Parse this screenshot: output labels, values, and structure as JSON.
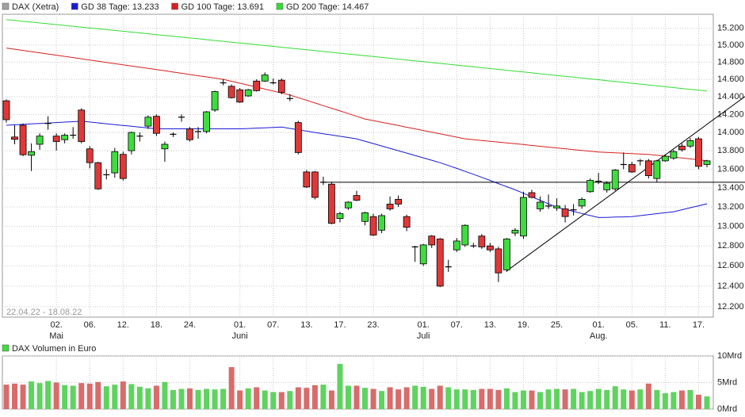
{
  "chart_data": {
    "type": "candlestick",
    "name": "DAX (Xetra)",
    "log": true,
    "grid": true,
    "date_range": "22.04.22 - 18.08.22",
    "up_color": "#3fdc3f",
    "down_color": "#e03838",
    "flat_color": "#000000",
    "legend_marker_color": "#a0a0a0",
    "ylim": [
      12100,
      15370
    ],
    "yticks": [
      {
        "value": 12200,
        "label": "12.200"
      },
      {
        "value": 12400,
        "label": "12.400"
      },
      {
        "value": 12600,
        "label": "12.600"
      },
      {
        "value": 12800,
        "label": "12.800"
      },
      {
        "value": 13000,
        "label": "13.000"
      },
      {
        "value": 13200,
        "label": "13.200"
      },
      {
        "value": 13400,
        "label": "13.400"
      },
      {
        "value": 13600,
        "label": "13.600"
      },
      {
        "value": 13800,
        "label": "13.800"
      },
      {
        "value": 14000,
        "label": "14.000"
      },
      {
        "value": 14200,
        "label": "14.200"
      },
      {
        "value": 14400,
        "label": "14.400"
      },
      {
        "value": 14600,
        "label": "14.600"
      },
      {
        "value": 14800,
        "label": "14.800"
      },
      {
        "value": 15000,
        "label": "15.000"
      },
      {
        "value": 15200,
        "label": "15.200"
      }
    ],
    "categories": [
      null,
      null,
      null,
      null,
      null,
      null,
      "02.",
      null,
      null,
      null,
      "06.",
      null,
      null,
      null,
      "12.",
      null,
      null,
      null,
      "18.",
      null,
      null,
      null,
      "24.",
      null,
      null,
      null,
      null,
      null,
      "01.",
      null,
      null,
      null,
      "07.",
      null,
      null,
      null,
      "13.",
      null,
      null,
      null,
      "17.",
      null,
      null,
      null,
      "23.",
      null,
      null,
      null,
      null,
      null,
      "01.",
      null,
      null,
      null,
      "07.",
      null,
      null,
      null,
      "13.",
      null,
      null,
      null,
      "19.",
      null,
      null,
      null,
      "25.",
      null,
      null,
      null,
      null,
      "01.",
      null,
      null,
      null,
      "05.",
      null,
      null,
      null,
      "11.",
      null,
      null,
      null,
      "17.",
      null
    ],
    "months": [
      null,
      null,
      null,
      null,
      null,
      null,
      "Mai",
      null,
      null,
      null,
      null,
      null,
      null,
      null,
      null,
      null,
      null,
      null,
      null,
      null,
      null,
      null,
      null,
      null,
      null,
      null,
      null,
      null,
      "Juni",
      null,
      null,
      null,
      null,
      null,
      null,
      null,
      null,
      null,
      null,
      null,
      null,
      null,
      null,
      null,
      null,
      null,
      null,
      null,
      null,
      null,
      "Juli",
      null,
      null,
      null,
      null,
      null,
      null,
      null,
      null,
      null,
      null,
      null,
      null,
      null,
      null,
      null,
      null,
      null,
      null,
      null,
      null,
      "Aug.",
      null,
      null,
      null,
      null,
      null,
      null,
      null,
      null,
      null,
      null,
      null,
      null,
      null
    ],
    "ohlc": [
      [
        14355,
        14370,
        14110,
        14142
      ],
      [
        13950,
        14080,
        13870,
        13924
      ],
      [
        14080,
        14100,
        13740,
        13756
      ],
      [
        13750,
        13880,
        13580,
        13790
      ],
      [
        13870,
        13990,
        13810,
        13960
      ],
      [
        14100,
        14180,
        14030,
        14100
      ],
      [
        13960,
        13990,
        13800,
        13900
      ],
      [
        13920,
        13990,
        13880,
        13970
      ],
      [
        13970,
        14060,
        13930,
        13970
      ],
      [
        14250,
        14270,
        13880,
        13900
      ],
      [
        13820,
        13850,
        13610,
        13670
      ],
      [
        13670,
        13680,
        13380,
        13390
      ],
      [
        13540,
        13600,
        13490,
        13540
      ],
      [
        13560,
        13830,
        13510,
        13790
      ],
      [
        13760,
        13790,
        13480,
        13500
      ],
      [
        13800,
        14010,
        13760,
        14000
      ],
      [
        13960,
        14000,
        13900,
        13960
      ],
      [
        14070,
        14190,
        14040,
        14170
      ],
      [
        14180,
        14200,
        13960,
        13990
      ],
      [
        13820,
        13900,
        13680,
        13870
      ],
      [
        13980,
        14000,
        13950,
        13980
      ],
      [
        14170,
        14200,
        14120,
        14170
      ],
      [
        14040,
        14060,
        13900,
        13920
      ],
      [
        14010,
        14060,
        13930,
        14010
      ],
      [
        14010,
        14240,
        13990,
        14230
      ],
      [
        14250,
        14470,
        14230,
        14460
      ],
      [
        14560,
        14600,
        14530,
        14560
      ],
      [
        14520,
        14540,
        14380,
        14390
      ],
      [
        14480,
        14500,
        14330,
        14340
      ],
      [
        14410,
        14490,
        14400,
        14480
      ],
      [
        14580,
        14600,
        14460,
        14470
      ],
      [
        14580,
        14680,
        14570,
        14650
      ],
      [
        14560,
        14610,
        14540,
        14560
      ],
      [
        14590,
        14610,
        14430,
        14450
      ],
      [
        14380,
        14430,
        14350,
        14380
      ],
      [
        14110,
        14130,
        13760,
        13780
      ],
      [
        13570,
        13590,
        13400,
        13410
      ],
      [
        13570,
        13580,
        13280,
        13300
      ],
      [
        13460,
        13520,
        13430,
        13460
      ],
      [
        13440,
        13460,
        13020,
        13030
      ],
      [
        13080,
        13150,
        13040,
        13130
      ],
      [
        13190,
        13260,
        13170,
        13250
      ],
      [
        13320,
        13370,
        13260,
        13270
      ],
      [
        13050,
        13150,
        13010,
        13140
      ],
      [
        13100,
        13130,
        12900,
        12910
      ],
      [
        12960,
        13130,
        12930,
        13110
      ],
      [
        13230,
        13310,
        13160,
        13180
      ],
      [
        13280,
        13320,
        13200,
        13230
      ],
      [
        13100,
        13120,
        12950,
        12990
      ],
      [
        12790,
        12800,
        12640,
        12790
      ],
      [
        12620,
        12820,
        12600,
        12810
      ],
      [
        12900,
        12910,
        12780,
        12810
      ],
      [
        12870,
        12880,
        12390,
        12400
      ],
      [
        12590,
        12660,
        12540,
        12590
      ],
      [
        12760,
        12880,
        12740,
        12850
      ],
      [
        12810,
        13020,
        12790,
        13010
      ],
      [
        12800,
        12830,
        12780,
        12800
      ],
      [
        12900,
        12920,
        12770,
        12790
      ],
      [
        12800,
        12830,
        12740,
        12760
      ],
      [
        12770,
        12790,
        12440,
        12530
      ],
      [
        12560,
        12880,
        12540,
        12870
      ],
      [
        12930,
        12980,
        12900,
        12960
      ],
      [
        12900,
        13360,
        12870,
        13300
      ],
      [
        13350,
        13380,
        13290,
        13300
      ],
      [
        13180,
        13310,
        13150,
        13250
      ],
      [
        13210,
        13330,
        13180,
        13210
      ],
      [
        13190,
        13290,
        13160,
        13210
      ],
      [
        13180,
        13220,
        13040,
        13100
      ],
      [
        13170,
        13230,
        13110,
        13170
      ],
      [
        13210,
        13300,
        13180,
        13280
      ],
      [
        13360,
        13500,
        13350,
        13480
      ],
      [
        13470,
        13560,
        13440,
        13470
      ],
      [
        13380,
        13470,
        13350,
        13450
      ],
      [
        13390,
        13600,
        13370,
        13590
      ],
      [
        13650,
        13780,
        13600,
        13650
      ],
      [
        13650,
        13680,
        13560,
        13570
      ],
      [
        13690,
        13710,
        13640,
        13690
      ],
      [
        13690,
        13710,
        13500,
        13530
      ],
      [
        13500,
        13700,
        13460,
        13690
      ],
      [
        13690,
        13760,
        13680,
        13740
      ],
      [
        13720,
        13810,
        13700,
        13790
      ],
      [
        13850,
        13880,
        13790,
        13810
      ],
      [
        13850,
        13940,
        13830,
        13910
      ],
      [
        13930,
        13950,
        13600,
        13630
      ],
      [
        13650,
        13700,
        13620,
        13690
      ]
    ],
    "series": [
      {
        "name": "GD 38 Tage: 13.233",
        "color": "#1a1ad6",
        "values": [
          14080,
          14085,
          14090,
          14095,
          14100,
          14105,
          14110,
          14115,
          14120,
          14125,
          14116,
          14106,
          14097,
          14087,
          14078,
          14069,
          14059,
          14050,
          14040,
          14040,
          14040,
          14040,
          14040,
          14040,
          14040,
          14040,
          14040,
          14040,
          14040,
          14044,
          14048,
          14052,
          14056,
          14060,
          14045,
          14030,
          14015,
          14000,
          13986,
          13972,
          13958,
          13944,
          13930,
          13904,
          13878,
          13852,
          13826,
          13800,
          13774,
          13748,
          13722,
          13696,
          13670,
          13639,
          13608,
          13576,
          13545,
          13512,
          13479,
          13446,
          13413,
          13380,
          13343,
          13306,
          13270,
          13233,
          13196,
          13175,
          13154,
          13132,
          13111,
          13090,
          13092,
          13095,
          13097,
          13100,
          13110,
          13120,
          13130,
          13140,
          13150,
          13171,
          13192,
          13212,
          13233
        ]
      },
      {
        "name": "GD 100 Tage: 13.691",
        "color": "#d82020",
        "values": [
          14965,
          14951,
          14937,
          14923,
          14909,
          14895,
          14881,
          14867,
          14853,
          14839,
          14825,
          14811,
          14797,
          14783,
          14769,
          14755,
          14741,
          14727,
          14713,
          14699,
          14684,
          14670,
          14656,
          14642,
          14628,
          14614,
          14600,
          14578,
          14555,
          14533,
          14510,
          14488,
          14465,
          14443,
          14420,
          14390,
          14360,
          14330,
          14300,
          14270,
          14240,
          14210,
          14180,
          14150,
          14132,
          14113,
          14095,
          14077,
          14058,
          14040,
          14022,
          14003,
          13985,
          13967,
          13948,
          13930,
          13921,
          13912,
          13903,
          13894,
          13885,
          13876,
          13867,
          13857,
          13848,
          13839,
          13830,
          13821,
          13812,
          13803,
          13794,
          13785,
          13781,
          13777,
          13773,
          13768,
          13764,
          13760,
          13750,
          13740,
          13730,
          13720,
          13711,
          13701,
          13691
        ]
      },
      {
        "name": "GD 200 Tage: 14.467",
        "color": "#33dd33",
        "values": [
          15305,
          15295,
          15285,
          15275,
          15265,
          15255,
          15245,
          15235,
          15225,
          15215,
          15205,
          15195,
          15185,
          15175,
          15165,
          15155,
          15145,
          15135,
          15125,
          15115,
          15105,
          15095,
          15085,
          15075,
          15065,
          15055,
          15045,
          15035,
          15025,
          15015,
          15005,
          14995,
          14985,
          14975,
          14965,
          14955,
          14945,
          14935,
          14925,
          14915,
          14905,
          14895,
          14885,
          14875,
          14865,
          14855,
          14845,
          14835,
          14825,
          14815,
          14805,
          14795,
          14785,
          14775,
          14765,
          14755,
          14745,
          14735,
          14725,
          14715,
          14705,
          14695,
          14685,
          14675,
          14665,
          14655,
          14645,
          14635,
          14625,
          14615,
          14605,
          14595,
          14585,
          14575,
          14565,
          14555,
          14545,
          14535,
          14525,
          14515,
          14505,
          14495,
          14485,
          14475,
          14467
        ]
      }
    ],
    "hline": 13460,
    "trendline": {
      "x": [
        60,
        84
      ],
      "values": [
        12550,
        14090
      ]
    },
    "volume": {
      "title": "DAX Volumen in Euro",
      "marker_color": "#3fdc3f",
      "up_color": "#5fd35f",
      "down_color": "#d96b6b",
      "ylim": [
        0,
        10
      ],
      "yticks": [
        {
          "value": 0,
          "label": "0Mrd"
        },
        {
          "value": 5,
          "label": "5Mrd"
        },
        {
          "value": 10,
          "label": "10Mrd"
        }
      ],
      "values": [
        4.6,
        4.8,
        4.6,
        5.2,
        4.9,
        5.3,
        5.0,
        4.5,
        4.4,
        4.9,
        4.8,
        5.1,
        4.3,
        4.6,
        5.2,
        4.7,
        4.2,
        3.9,
        4.4,
        5.1,
        3.6,
        3.8,
        3.9,
        3.6,
        3.8,
        3.7,
        3.8,
        7.9,
        3.5,
        3.9,
        4.1,
        3.5,
        3.2,
        3.2,
        3.4,
        4.1,
        4.0,
        4.5,
        4.6,
        3.5,
        8.5,
        4.4,
        4.4,
        4.0,
        3.8,
        3.4,
        4.1,
        3.7,
        4.1,
        4.4,
        4.2,
        3.8,
        4.4,
        4.1,
        3.7,
        3.7,
        3.6,
        3.8,
        3.8,
        3.6,
        3.9,
        3.2,
        3.5,
        3.5,
        3.2,
        3.7,
        3.8,
        3.7,
        3.8,
        3.2,
        3.4,
        3.8,
        3.6,
        4.3,
        3.7,
        3.5,
        3.7,
        4.8,
        3.6,
        3.0,
        3.2,
        3.5,
        3.6,
        2.7,
        2.4
      ]
    }
  }
}
